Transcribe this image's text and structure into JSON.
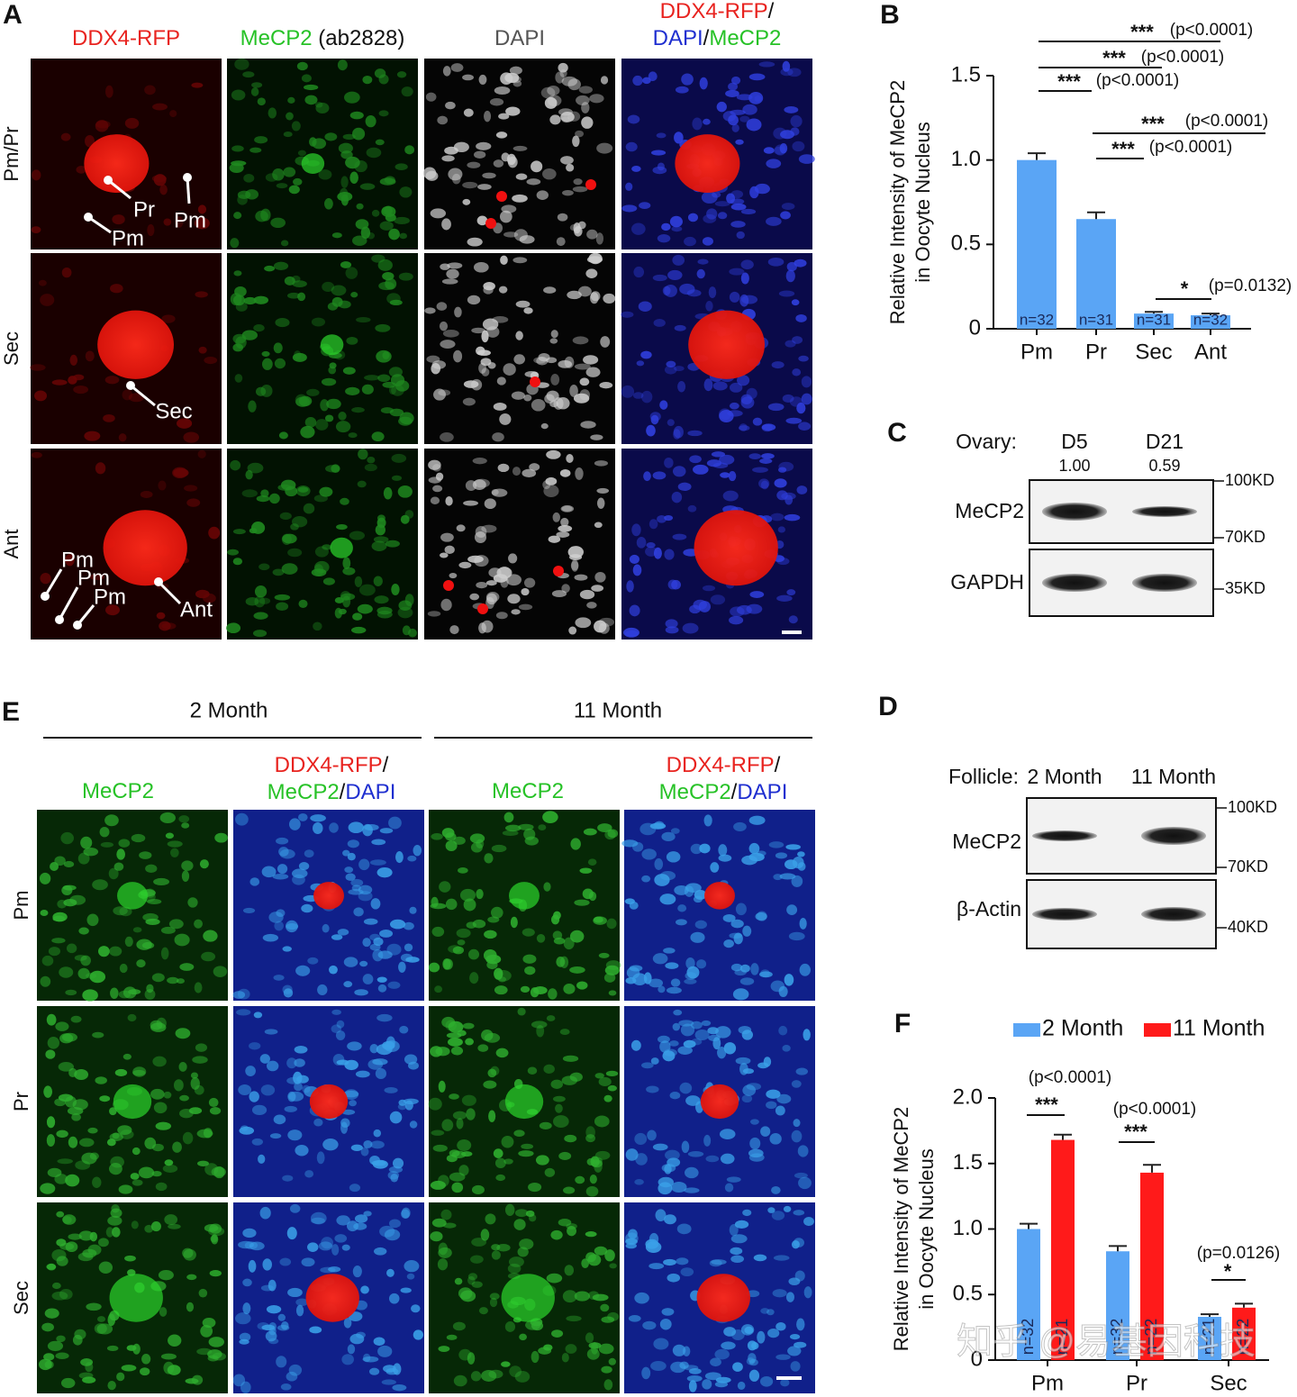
{
  "panel_labels": {
    "a": "A",
    "b": "B",
    "c": "C",
    "d": "D",
    "e": "E",
    "f": "F"
  },
  "panel_a": {
    "columns": [
      [
        [
          {
            "text": "DDX4-RFP",
            "color": "#e8231f"
          }
        ]
      ],
      [
        [
          {
            "text": "MeCP2",
            "color": "#27c227"
          },
          {
            "text": " (ab2828)",
            "color": "#111111"
          }
        ]
      ],
      [
        [
          {
            "text": "DAPI",
            "color": "#555555"
          }
        ]
      ],
      [
        [
          {
            "text": "DDX4-RFP",
            "color": "#e8231f"
          },
          {
            "text": "/",
            "color": "#111111"
          }
        ],
        [
          {
            "text": "DAPI",
            "color": "#1f2fd0"
          },
          {
            "text": "/",
            "color": "#111111"
          },
          {
            "text": "MeCP2",
            "color": "#27c227"
          }
        ]
      ]
    ],
    "rows": [
      "Pm/Pr",
      "Sec",
      "Ant"
    ],
    "labels": [
      "Pr",
      "Pm",
      "Pm",
      "Sec",
      "Pm",
      "Pm",
      "Pm",
      "Ant"
    ]
  },
  "panel_c": {
    "title": "Ovary:",
    "lanes": [
      "D5",
      "D21"
    ],
    "quantities": [
      "1.00",
      "0.59"
    ],
    "blots": [
      "MeCP2",
      "GAPDH"
    ],
    "markers": [
      "100KD",
      "70KD",
      "35KD"
    ]
  },
  "panel_d": {
    "title": "Follicle:",
    "lanes": [
      "2 Month",
      "11 Month"
    ],
    "blots": [
      "MeCP2",
      "β-Actin"
    ],
    "markers": [
      "100KD",
      "70KD",
      "40KD"
    ]
  },
  "panel_e": {
    "groups": [
      "2 Month",
      "11 Month"
    ],
    "columns": [
      [
        [
          {
            "text": "MeCP2",
            "color": "#27c227"
          }
        ]
      ],
      [
        [
          {
            "text": "DDX4-RFP",
            "color": "#e8231f"
          },
          {
            "text": "/",
            "color": "#111111"
          }
        ],
        [
          {
            "text": "MeCP2",
            "color": "#27c227"
          },
          {
            "text": "/",
            "color": "#111111"
          },
          {
            "text": "DAPI",
            "color": "#1f2fd0"
          }
        ]
      ],
      [
        [
          {
            "text": "MeCP2",
            "color": "#27c227"
          }
        ]
      ],
      [
        [
          {
            "text": "DDX4-RFP",
            "color": "#e8231f"
          },
          {
            "text": "/",
            "color": "#111111"
          }
        ],
        [
          {
            "text": "MeCP2",
            "color": "#27c227"
          },
          {
            "text": "/",
            "color": "#111111"
          },
          {
            "text": "DAPI",
            "color": "#1f2fd0"
          }
        ]
      ]
    ],
    "rows": [
      "Pm",
      "Pr",
      "Sec"
    ]
  },
  "chart_data": [
    {
      "type": "bar",
      "ylabel": [
        "Relative Intensity of MeCP2",
        "in Oocyte Nucleus"
      ],
      "categories": [
        "Pm",
        "Pr",
        "Sec",
        "Ant"
      ],
      "values": [
        1.0,
        0.65,
        0.09,
        0.08
      ],
      "errors": [
        0.04,
        0.04,
        0.01,
        0.01
      ],
      "value_labels": [
        "n=32",
        "n=31",
        "n=31",
        "n=32"
      ],
      "color": "#5aa5f5",
      "ylim": [
        0,
        1.5
      ],
      "yticks": [
        0,
        0.5,
        {
          "value": 1,
          "label": "1.0"
        },
        1.5
      ],
      "annotations": [
        {
          "stars": "***",
          "p": "(p<0.0001)"
        },
        {
          "stars": "***",
          "p": "(p<0.0001)"
        },
        {
          "stars": "***",
          "p": "(p<0.0001)"
        },
        {
          "stars": "***",
          "p": "(p<0.0001)"
        },
        {
          "stars": "***",
          "p": "(p<0.0001)"
        },
        {
          "stars": "*",
          "p": "(p=0.0132)"
        }
      ]
    },
    {
      "type": "grouped_bar",
      "ylabel": [
        "Relative Intensity of MeCP2",
        "in Oocyte Nucleus"
      ],
      "categories": [
        "Pm",
        "Pr",
        "Sec"
      ],
      "series": [
        {
          "name": "2 Month",
          "color": "#5aa5f5",
          "values": [
            1.0,
            0.83,
            0.33
          ],
          "errors": [
            0.04,
            0.04,
            0.02
          ],
          "value_labels": [
            "n=32",
            "n=32",
            "n=21"
          ]
        },
        {
          "name": "11 Month",
          "color": "#ff1a1a",
          "values": [
            1.68,
            1.43,
            0.4
          ],
          "errors": [
            0.04,
            0.06,
            0.03
          ],
          "value_labels": [
            "n=21",
            "n=22",
            "n=22"
          ]
        }
      ],
      "ylim": [
        0,
        2
      ],
      "yticks": [
        0,
        0.5,
        {
          "value": 1,
          "label": "1.0"
        },
        1.5,
        {
          "value": 2,
          "label": "2.0"
        }
      ],
      "legend": "top",
      "annotations": [
        {
          "stars": "***",
          "p": "(p<0.0001)"
        },
        {
          "stars": "***",
          "p": "(p<0.0001)"
        },
        {
          "stars": "*",
          "p": "(p=0.0126)"
        }
      ],
      "watermark": "知乎 @易基因科技"
    }
  ]
}
